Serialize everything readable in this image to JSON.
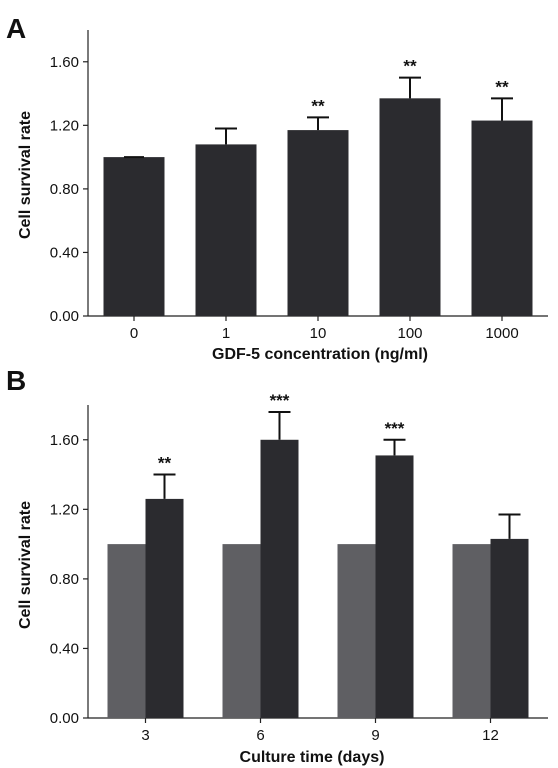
{
  "chart_data": [
    {
      "type": "bar",
      "panel_label": "A",
      "xlabel": "GDF-5 concentration (ng/ml)",
      "ylabel": "Cell survival rate",
      "ylim": [
        0,
        1.8
      ],
      "yticks": [
        "0.00",
        "0.40",
        "0.80",
        "1.20",
        "1.60"
      ],
      "ytick_values": [
        0,
        0.4,
        0.8,
        1.2,
        1.6
      ],
      "categories": [
        "0",
        "1",
        "10",
        "100",
        "1000"
      ],
      "series": [
        {
          "color": "#2b2b2f",
          "values": [
            1.0,
            1.08,
            1.17,
            1.37,
            1.23
          ],
          "errors": [
            0.0,
            0.1,
            0.08,
            0.13,
            0.14
          ],
          "annotations": [
            "",
            "",
            "**",
            "**",
            "**"
          ]
        }
      ],
      "grid": false
    },
    {
      "type": "bar",
      "panel_label": "B",
      "xlabel": "Culture time (days)",
      "ylabel": "Cell survival rate",
      "ylim": [
        0,
        1.8
      ],
      "yticks": [
        "0.00",
        "0.40",
        "0.80",
        "1.20",
        "1.60"
      ],
      "ytick_values": [
        0,
        0.4,
        0.8,
        1.2,
        1.6
      ],
      "categories": [
        "3",
        "6",
        "9",
        "12"
      ],
      "series": [
        {
          "color": "#5f5f63",
          "values": [
            1.0,
            1.0,
            1.0,
            1.0
          ],
          "errors": [
            0,
            0,
            0,
            0
          ],
          "annotations": [
            "",
            "",
            "",
            ""
          ]
        },
        {
          "color": "#2b2b2f",
          "values": [
            1.26,
            1.6,
            1.51,
            1.03
          ],
          "errors": [
            0.14,
            0.16,
            0.09,
            0.14
          ],
          "annotations": [
            "**",
            "***",
            "***",
            ""
          ]
        }
      ],
      "grid": false
    }
  ]
}
